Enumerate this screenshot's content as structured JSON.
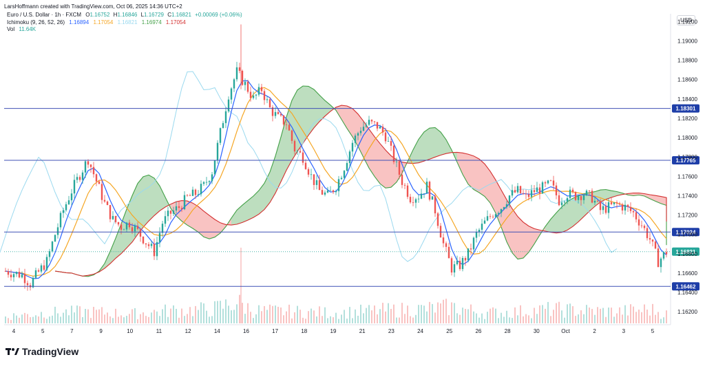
{
  "header": {
    "author_line": "LarsHoffmann created with TradingView.com, Oct 06, 2025 14:36 UTC+2"
  },
  "legend": {
    "symbol": "Euro / U.S. Dollar · 1h · FXCM",
    "ohlc": [
      {
        "k": "O",
        "v": "1.16752"
      },
      {
        "k": "H",
        "v": "1.16846"
      },
      {
        "k": "L",
        "v": "1.16729"
      },
      {
        "k": "C",
        "v": "1.16821"
      }
    ],
    "change": "+0.00069 (+0.06%)",
    "ichimoku_label": "Ichimoku (9, 26, 52, 26)",
    "ichimoku_values": [
      {
        "v": "1.16894",
        "color": "#2962ff"
      },
      {
        "v": "1.17054",
        "color": "#f5a623"
      },
      {
        "v": "1.16821",
        "color": "#9ad9ef"
      },
      {
        "v": "1.16974",
        "color": "#43a047"
      },
      {
        "v": "1.17054",
        "color": "#d32f2f"
      }
    ],
    "vol_label": "Vol",
    "vol_value": "11.64K"
  },
  "currency": "USD",
  "brand": "TradingView",
  "colors": {
    "up": "#26a69a",
    "down": "#ef5350",
    "text": "#131722",
    "tenkan": "#2962ff",
    "kijun": "#f5a623",
    "chikou": "#9ad9ef",
    "spanA": "#43a047",
    "spanB": "#d32f2f",
    "hline": "#3f51b5",
    "price": "#26a69a"
  },
  "chart_data": {
    "type": "candlestick",
    "title": "Euro / U.S. Dollar · 1h · FXCM",
    "ylim": [
      1.1608,
      1.1928
    ],
    "y_ticks": [
      "1.19200",
      "1.19000",
      "1.18800",
      "1.18600",
      "1.18400",
      "1.18200",
      "1.18000",
      "1.17800",
      "1.17600",
      "1.17400",
      "1.17200",
      "1.17000",
      "1.16800",
      "1.16600",
      "1.16400",
      "1.16200"
    ],
    "x_ticks": [
      "4",
      "5",
      "7",
      "9",
      "10",
      "11",
      "12",
      "14",
      "16",
      "17",
      "18",
      "19",
      "21",
      "23",
      "24",
      "25",
      "26",
      "28",
      "30",
      "Oct",
      "2",
      "3",
      "5"
    ],
    "horizontal_lines": [
      {
        "value": 1.18301,
        "label": "1.18301"
      },
      {
        "value": 1.17765,
        "label": "1.17765"
      },
      {
        "value": 1.17024,
        "label": "1.17024"
      },
      {
        "value": 1.16462,
        "label": "1.16462"
      }
    ],
    "last_price": {
      "value": 1.16821,
      "label": "1.16821"
    },
    "price_path": [
      [
        0,
        1.1662
      ],
      [
        2,
        1.1658
      ],
      [
        3,
        1.1649
      ],
      [
        4,
        1.1661
      ],
      [
        5,
        1.1672
      ],
      [
        6,
        1.17
      ],
      [
        7,
        1.1725
      ],
      [
        8,
        1.1745
      ],
      [
        9,
        1.1762
      ],
      [
        10,
        1.1778
      ],
      [
        11,
        1.1755
      ],
      [
        12,
        1.1732
      ],
      [
        13,
        1.1715
      ],
      [
        14,
        1.1708
      ],
      [
        15,
        1.1712
      ],
      [
        16,
        1.1703
      ],
      [
        17,
        1.1692
      ],
      [
        18,
        1.1682
      ],
      [
        19,
        1.1712
      ],
      [
        20,
        1.1722
      ],
      [
        21,
        1.1728
      ],
      [
        22,
        1.1738
      ],
      [
        23,
        1.1742
      ],
      [
        24,
        1.175
      ],
      [
        25,
        1.1765
      ],
      [
        26,
        1.1805
      ],
      [
        27,
        1.1845
      ],
      [
        28,
        1.1868
      ],
      [
        29,
        1.1855
      ],
      [
        30,
        1.184
      ],
      [
        31,
        1.185
      ],
      [
        32,
        1.183
      ],
      [
        33,
        1.182
      ],
      [
        34,
        1.1815
      ],
      [
        35,
        1.1788
      ],
      [
        36,
        1.178
      ],
      [
        37,
        1.176
      ],
      [
        38,
        1.1745
      ],
      [
        39,
        1.174
      ],
      [
        40,
        1.175
      ],
      [
        41,
        1.177
      ],
      [
        42,
        1.1795
      ],
      [
        43,
        1.181
      ],
      [
        44,
        1.1815
      ],
      [
        45,
        1.1812
      ],
      [
        46,
        1.1802
      ],
      [
        47,
        1.1778
      ],
      [
        48,
        1.1755
      ],
      [
        49,
        1.1738
      ],
      [
        50,
        1.174
      ],
      [
        51,
        1.175
      ],
      [
        52,
        1.1725
      ],
      [
        53,
        1.169
      ],
      [
        54,
        1.1665
      ],
      [
        55,
        1.1668
      ],
      [
        56,
        1.168
      ],
      [
        57,
        1.17
      ],
      [
        58,
        1.1712
      ],
      [
        59,
        1.1722
      ],
      [
        60,
        1.1728
      ],
      [
        61,
        1.174
      ],
      [
        62,
        1.1745
      ],
      [
        63,
        1.1738
      ],
      [
        64,
        1.1745
      ],
      [
        65,
        1.1748
      ],
      [
        66,
        1.1752
      ],
      [
        67,
        1.1735
      ],
      [
        68,
        1.1742
      ],
      [
        69,
        1.174
      ],
      [
        70,
        1.1742
      ],
      [
        71,
        1.1738
      ],
      [
        72,
        1.1725
      ],
      [
        73,
        1.1728
      ],
      [
        74,
        1.1731
      ],
      [
        75,
        1.1728
      ],
      [
        76,
        1.1722
      ],
      [
        77,
        1.171
      ],
      [
        78,
        1.1695
      ],
      [
        79,
        1.1672
      ],
      [
        80,
        1.1682
      ]
    ],
    "volume_path": [
      [
        0,
        0.3
      ],
      [
        5,
        0.45
      ],
      [
        10,
        0.5
      ],
      [
        15,
        0.4
      ],
      [
        20,
        0.55
      ],
      [
        25,
        0.6
      ],
      [
        28,
        0.9
      ],
      [
        30,
        0.55
      ],
      [
        35,
        0.5
      ],
      [
        40,
        0.45
      ],
      [
        45,
        0.55
      ],
      [
        50,
        0.6
      ],
      [
        54,
        0.7
      ],
      [
        58,
        0.45
      ],
      [
        62,
        0.5
      ],
      [
        66,
        0.6
      ],
      [
        70,
        0.55
      ],
      [
        74,
        0.5
      ],
      [
        78,
        0.6
      ],
      [
        80,
        0.4
      ]
    ]
  }
}
